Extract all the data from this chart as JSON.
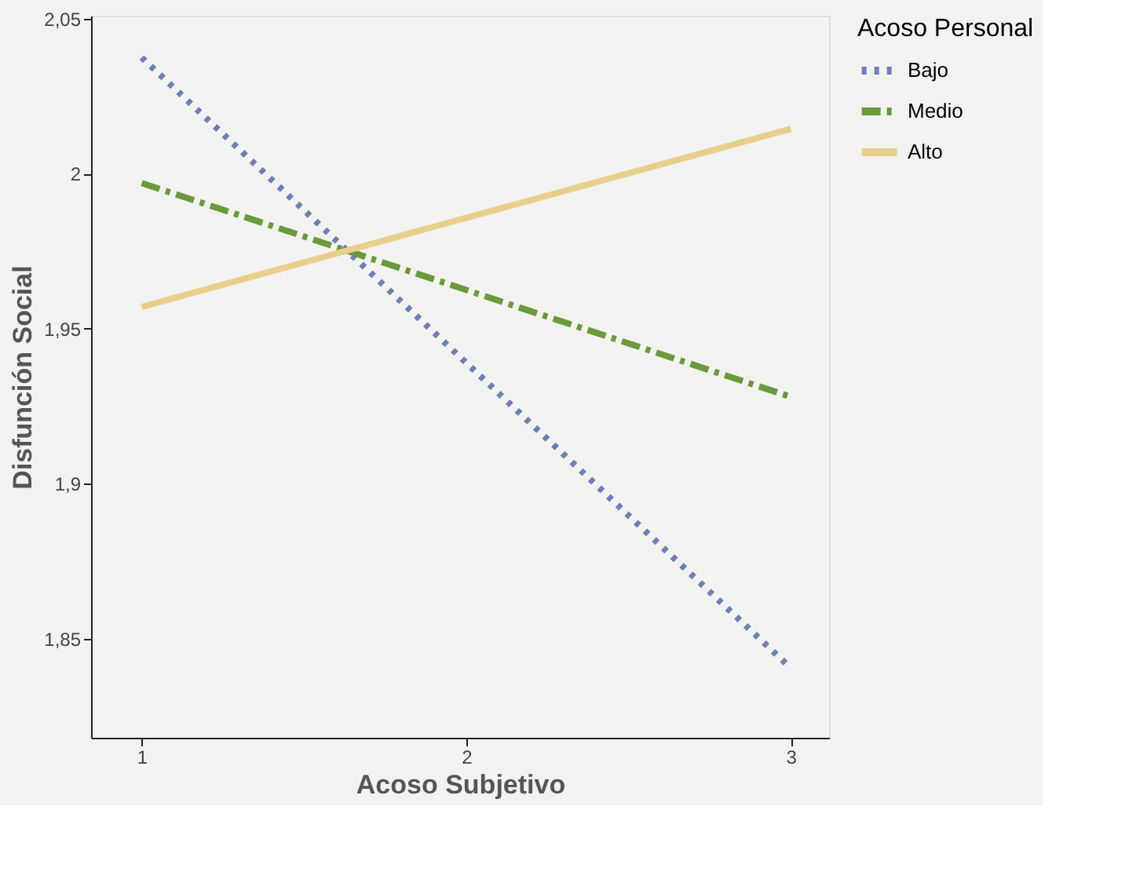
{
  "chart_data": {
    "type": "line",
    "xlabel": "Acoso Subjetivo",
    "ylabel": "Disfunción Social",
    "legend_title": "Acoso Personal",
    "legend": "top right",
    "marker": "none",
    "xlim": [
      0.844,
      3.118
    ],
    "xticks": [
      1,
      2,
      3
    ],
    "ylim": [
      1.818,
      2.051
    ],
    "yticks": [
      {
        "value": 1.85,
        "label": "1,85"
      },
      {
        "value": 1.9,
        "label": "1,9"
      },
      {
        "value": 1.95,
        "label": "1,95"
      },
      {
        "value": 2,
        "label": "2"
      },
      {
        "value": 2.05,
        "label": "2,05"
      }
    ],
    "x": [
      1,
      3
    ],
    "series": [
      {
        "name": "Bajo",
        "color": "#6c7fb8",
        "line_style": "dotted",
        "values": [
          2.0375,
          1.8405
        ]
      },
      {
        "name": "Medio",
        "color": "#6a9a3c",
        "line_style": "dashed",
        "values": [
          1.997,
          1.928
        ]
      },
      {
        "name": "Alto",
        "color": "#e8d08c",
        "line_style": "solid",
        "values": [
          1.957,
          2.0145
        ]
      }
    ]
  }
}
